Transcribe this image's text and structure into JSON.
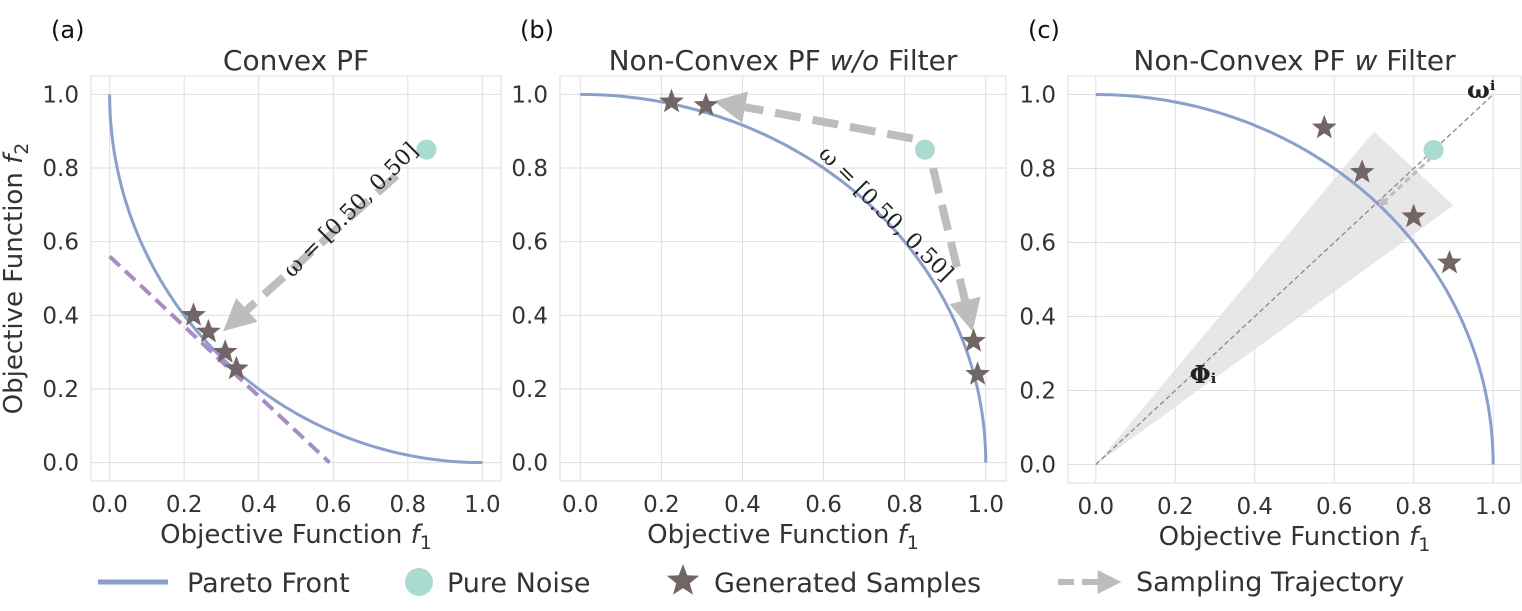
{
  "colors": {
    "pareto_front": "#8a9fcb",
    "pure_noise": "#a9dbd0",
    "generated_samples": "#716565",
    "sampling_trajectory": "#bdbdbd",
    "tangent_line": "#a88cc6",
    "filter_cone": "#e3e3e3",
    "grid": "#dedede"
  },
  "chart_data": [
    {
      "type": "line",
      "panel_label": "(a)",
      "title": "Convex PF",
      "xlabel": "Objective Function f1",
      "ylabel": "Objective Function f2",
      "xlim": [
        -0.05,
        1.05
      ],
      "ylim": [
        -0.05,
        1.05
      ],
      "xticks": [
        "0.0",
        "0.2",
        "0.4",
        "0.6",
        "0.8",
        "1.0"
      ],
      "yticks": [
        "0.0",
        "0.2",
        "0.4",
        "0.6",
        "0.8",
        "1.0"
      ],
      "grid": true,
      "pareto_front": "convex",
      "pure_noise": [
        0.85,
        0.85
      ],
      "generated_samples": [
        [
          0.225,
          0.4
        ],
        [
          0.265,
          0.355
        ],
        [
          0.31,
          0.3
        ],
        [
          0.34,
          0.255
        ]
      ],
      "trajectory": [
        [
          0.77,
          0.78
        ],
        [
          0.33,
          0.38
        ]
      ],
      "tangent_line": [
        [
          0.0,
          0.56
        ],
        [
          0.59,
          0.0
        ]
      ],
      "annotation": "ω = [0.50, 0.50]"
    },
    {
      "type": "line",
      "panel_label": "(b)",
      "title": "Non-Convex PF w/o Filter",
      "xlabel": "Objective Function f1",
      "xlim": [
        -0.05,
        1.05
      ],
      "ylim": [
        -0.05,
        1.05
      ],
      "xticks": [
        "0.0",
        "0.2",
        "0.4",
        "0.6",
        "0.8",
        "1.0"
      ],
      "yticks": [
        "0.0",
        "0.2",
        "0.4",
        "0.6",
        "0.8",
        "1.0"
      ],
      "grid": true,
      "pareto_front": "concave",
      "pure_noise": [
        0.85,
        0.85
      ],
      "generated_samples": [
        [
          0.225,
          0.98
        ],
        [
          0.31,
          0.97
        ],
        [
          0.97,
          0.33
        ],
        [
          0.98,
          0.24
        ]
      ],
      "trajectories": [
        [
          [
            0.82,
            0.88
          ],
          [
            0.36,
            0.975
          ]
        ],
        [
          [
            0.87,
            0.8
          ],
          [
            0.96,
            0.39
          ]
        ]
      ],
      "annotation": "ω = [0.50, 0.50]"
    },
    {
      "type": "line",
      "panel_label": "(c)",
      "title": "Non-Convex PF w Filter",
      "xlabel": "Objective Function f1",
      "xlim": [
        -0.07,
        1.07
      ],
      "ylim": [
        -0.05,
        1.05
      ],
      "xticks": [
        "0.0",
        "0.2",
        "0.4",
        "0.6",
        "0.8",
        "1.0"
      ],
      "yticks": [
        "0.0",
        "0.2",
        "0.4",
        "0.6",
        "0.8",
        "1.0"
      ],
      "grid": true,
      "pareto_front": "concave",
      "pure_noise": [
        0.85,
        0.85
      ],
      "generated_samples": [
        [
          0.575,
          0.91
        ],
        [
          0.67,
          0.79
        ],
        [
          0.8,
          0.67
        ],
        [
          0.89,
          0.545
        ]
      ],
      "trajectory": [
        [
          0.845,
          0.83
        ],
        [
          0.715,
          0.7
        ]
      ],
      "weight_ray": [
        [
          0.0,
          0.0
        ],
        [
          1.0,
          1.0
        ]
      ],
      "filter_cone": [
        [
          0.0,
          0.0
        ],
        [
          0.7,
          0.9
        ],
        [
          0.9,
          0.7
        ]
      ],
      "ray_label": "ωⁱ",
      "cone_label": "Φᵢ"
    }
  ],
  "legend": {
    "pareto_front": "Pareto Front",
    "pure_noise": "Pure Noise",
    "generated_samples": "Generated Samples",
    "sampling_trajectory": "Sampling Trajectory"
  }
}
